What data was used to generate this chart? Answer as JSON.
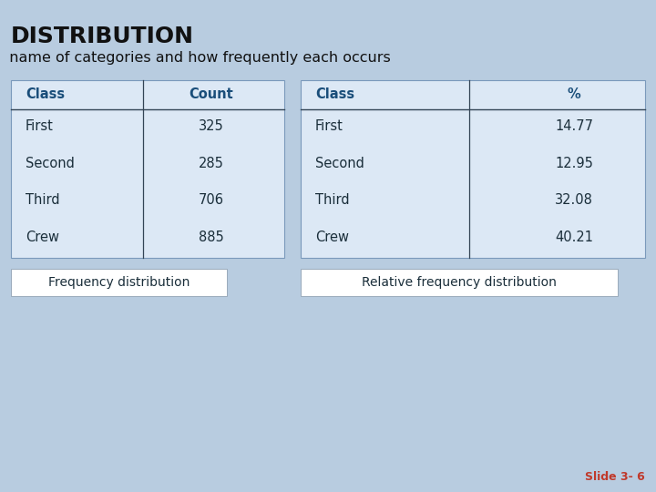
{
  "title": "DISTRIBUTION",
  "subtitle": "  name of categories and how frequently each occurs",
  "bg_color": "#b8cce0",
  "table_bg": "#dce8f5",
  "header_color": "#1a4e7a",
  "text_color": "#1a2e3a",
  "freq_classes": [
    "First",
    "Second",
    "Third",
    "Crew"
  ],
  "freq_counts": [
    "325",
    "285",
    "706",
    "885"
  ],
  "rel_classes": [
    "First",
    "Second",
    "Third",
    "Crew"
  ],
  "rel_percents": [
    "14.77",
    "12.95",
    "32.08",
    "40.21"
  ],
  "freq_label": "Frequency distribution",
  "rel_label": "Relative frequency distribution",
  "slide_label": "Slide 3- 6",
  "slide_color": "#c0392b",
  "line_color": "#334455",
  "border_color": "#7a99bb"
}
